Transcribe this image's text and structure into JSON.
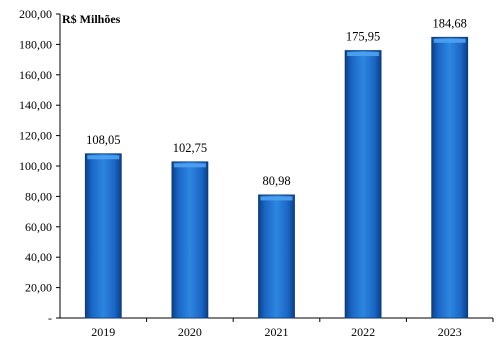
{
  "chart_data": {
    "type": "bar",
    "unit_label": "R$ Milhões",
    "categories": [
      "2019",
      "2020",
      "2021",
      "2022",
      "2023"
    ],
    "values": [
      108.05,
      102.75,
      80.98,
      175.95,
      184.68
    ],
    "value_labels": [
      "108,05",
      "102,75",
      "80,98",
      "175,95",
      "184,68"
    ],
    "ylim": [
      0,
      200
    ],
    "y_ticks": [
      0,
      20,
      40,
      60,
      80,
      100,
      120,
      140,
      160,
      180,
      200
    ],
    "y_tick_labels": [
      "-",
      "20,00",
      "40,00",
      "60,00",
      "80,00",
      "100,00",
      "120,00",
      "140,00",
      "160,00",
      "180,00",
      "200,00"
    ],
    "title": "",
    "xlabel": "",
    "ylabel": "",
    "grid": false,
    "legend": "none",
    "bar_color": "#1565c0",
    "bar_highlight": "#4fa3ef"
  }
}
